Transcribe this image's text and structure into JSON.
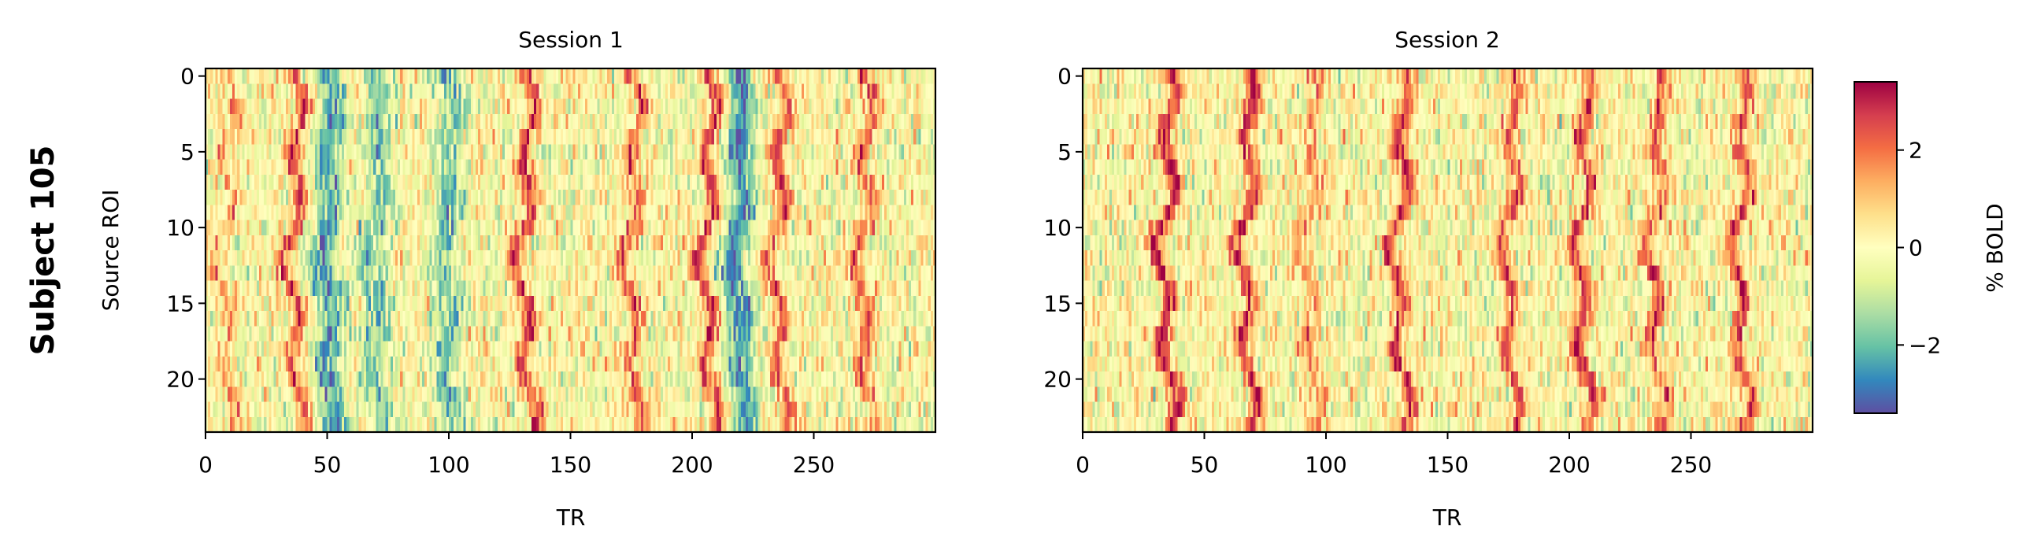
{
  "figure": {
    "row_label": "Subject 105"
  },
  "chart_data": [
    {
      "type": "heatmap",
      "title": "Session 1",
      "xlabel": "TR",
      "ylabel": "Source ROI",
      "xlim": [
        0,
        300
      ],
      "ylim": [
        23.5,
        -0.5
      ],
      "n_rows": 24,
      "n_cols": 300,
      "xticks": [
        "0",
        "50",
        "100",
        "150",
        "200",
        "250"
      ],
      "yticks": [
        "0",
        "5",
        "10",
        "15",
        "20"
      ],
      "positive_bands_TR": [
        8,
        36,
        131,
        175,
        206,
        235,
        270
      ],
      "positive_band_amplitude": [
        1.2,
        2.4,
        2.6,
        2.2,
        2.6,
        2.2,
        2.0
      ],
      "negative_bands_TR": [
        50,
        70,
        99,
        219
      ],
      "negative_band_amplitude": [
        -2.4,
        -1.6,
        -1.8,
        -2.6
      ]
    },
    {
      "type": "heatmap",
      "title": "Session 2",
      "xlabel": "TR",
      "ylabel": "",
      "xlim": [
        0,
        300
      ],
      "ylim": [
        23.5,
        -0.5
      ],
      "n_rows": 24,
      "n_cols": 300,
      "xticks": [
        "0",
        "50",
        "100",
        "150",
        "200",
        "250"
      ],
      "yticks": [
        "0",
        "5",
        "10",
        "15",
        "20"
      ],
      "positive_bands_TR": [
        34,
        67,
        93,
        130,
        175,
        205,
        235,
        270
      ],
      "positive_band_amplitude": [
        3.0,
        2.8,
        1.6,
        2.6,
        2.3,
        2.6,
        2.3,
        2.4
      ],
      "negative_bands_TR": [],
      "negative_band_amplitude": []
    }
  ],
  "colorbar": {
    "label": "% BOLD",
    "colormap": "Spectral_r",
    "range": [
      -3.4,
      3.4
    ],
    "ticks": [
      2,
      0,
      -2
    ],
    "tick_labels": [
      "2",
      "0",
      "−2"
    ],
    "colors": [
      "#5e4fa2",
      "#3288bd",
      "#66c2a5",
      "#abdda4",
      "#e6f598",
      "#ffffbf",
      "#fee08b",
      "#fdae61",
      "#f46d43",
      "#d53e4f",
      "#9e0142"
    ]
  }
}
